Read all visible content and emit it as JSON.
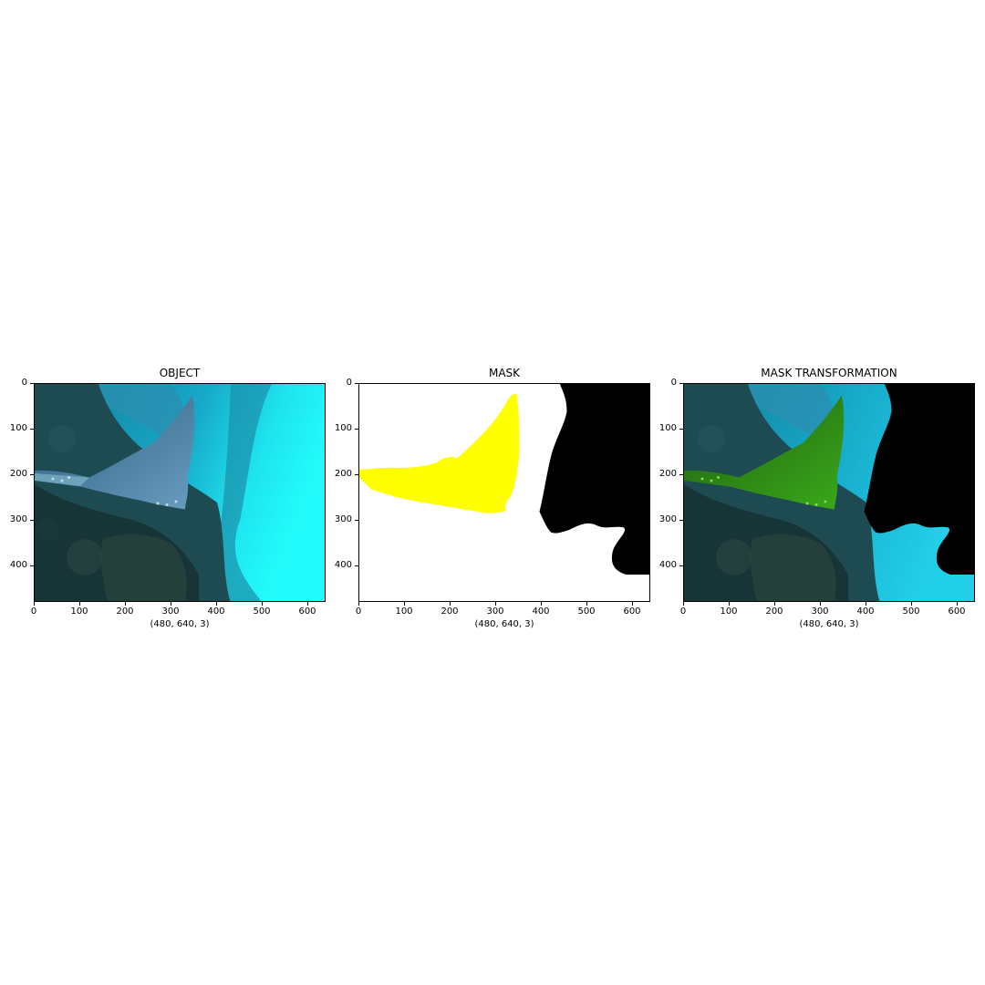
{
  "panels": [
    {
      "title": "OBJECT",
      "xlabel": "(480, 640, 3)"
    },
    {
      "title": "MASK",
      "xlabel": "(480, 640, 3)"
    },
    {
      "title": "MASK TRANSFORMATION",
      "xlabel": "(480, 640, 3)"
    }
  ],
  "x_ticks": [
    "0",
    "100",
    "200",
    "300",
    "400",
    "500",
    "600"
  ],
  "y_ticks": [
    "0",
    "100",
    "200",
    "300",
    "400"
  ],
  "image_shape": [
    480,
    640,
    3
  ],
  "colors": {
    "water_bright": "#1ff9f9",
    "water_mid": "#1aa6c4",
    "rock_dark": "#1c3a3e",
    "ray_body": "#5b8cb0",
    "mask_object": "#ffff00",
    "mask_background": "#000000",
    "highlight_green": "#2f8c14"
  }
}
